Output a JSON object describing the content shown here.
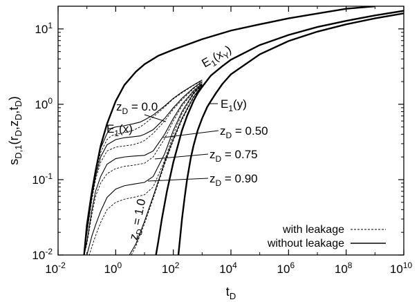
{
  "chart_data": {
    "type": "line",
    "title": "",
    "xlabel": "t_D",
    "ylabel": "s_{D,1}(r_D,z_D,t_D)",
    "xscale": "log",
    "yscale": "log",
    "xlim": [
      0.01,
      10000000000
    ],
    "ylim": [
      0.01,
      20
    ],
    "x_ticks": [
      0.01,
      1,
      100,
      10000,
      1000000,
      100000000,
      10000000000
    ],
    "x_tick_labels": [
      {
        "base": "10",
        "exp": "-2"
      },
      {
        "base": "10",
        "exp": "0"
      },
      {
        "base": "10",
        "exp": "2"
      },
      {
        "base": "10",
        "exp": "4"
      },
      {
        "base": "10",
        "exp": "6"
      },
      {
        "base": "10",
        "exp": "8"
      },
      {
        "base": "10",
        "exp": "10"
      }
    ],
    "y_ticks": [
      0.01,
      0.1,
      1,
      10
    ],
    "y_tick_labels": [
      {
        "base": "10",
        "exp": "-2"
      },
      {
        "base": "10",
        "exp": "-1"
      },
      {
        "base": "10",
        "exp": "0"
      },
      {
        "base": "10",
        "exp": "1"
      }
    ],
    "grid": false,
    "legend_position": "bottom-right",
    "legend": [
      {
        "label": "with leakage",
        "style": "dashed"
      },
      {
        "label": "without leakage",
        "style": "solid"
      }
    ],
    "annotations": [
      {
        "main": "E",
        "sub": "1",
        "tail": "(x)"
      },
      {
        "main": "E",
        "sub": "1",
        "tail": "(x",
        "sub2": "Y",
        "tail2": ")"
      },
      {
        "main": "E",
        "sub": "1",
        "tail": "(y)"
      },
      {
        "main": "z",
        "sub": "D",
        "tail": " = 0.0"
      },
      {
        "main": "z",
        "sub": "D",
        "tail": " = 0.50"
      },
      {
        "main": "z",
        "sub": "D",
        "tail": " = 0.75"
      },
      {
        "main": "z",
        "sub": "D",
        "tail": " = 0.90"
      },
      {
        "main": "z",
        "sub": "D",
        "tail": " = 1.0"
      }
    ],
    "series": [
      {
        "style": "thick",
        "x": [
          0.08,
          0.1,
          0.15,
          0.2,
          0.3,
          0.5,
          1,
          2,
          5,
          10,
          30,
          100,
          1000,
          10000,
          100000,
          1000000,
          10000000,
          100000000,
          1000000000
        ],
        "y": [
          0.01,
          0.025,
          0.07,
          0.13,
          0.28,
          0.55,
          1.1,
          1.8,
          2.7,
          3.4,
          4.4,
          5.3,
          7.3,
          9.5,
          11.5,
          13.8,
          16.0,
          18.5,
          20.0
        ]
      },
      {
        "style": "thick",
        "x": [
          25,
          30,
          40,
          60,
          100,
          150,
          200,
          300,
          500,
          700,
          1000,
          2000,
          5000,
          10000,
          100000,
          1000000,
          10000000,
          100000000,
          1000000000,
          10000000000
        ],
        "y": [
          0.01,
          0.015,
          0.03,
          0.07,
          0.17,
          0.3,
          0.45,
          0.7,
          1.1,
          1.4,
          1.7,
          2.4,
          3.2,
          3.9,
          6.1,
          8.3,
          10.6,
          12.8,
          15.1,
          17.4
        ]
      },
      {
        "style": "thick",
        "x": [
          150,
          200,
          250,
          300,
          400,
          500,
          700,
          1000,
          1500,
          2000,
          3000,
          5000,
          10000,
          100000,
          1000000,
          10000000,
          100000000,
          1000000000,
          10000000000
        ],
        "y": [
          0.01,
          0.03,
          0.06,
          0.1,
          0.19,
          0.28,
          0.45,
          0.65,
          0.92,
          1.1,
          1.4,
          1.85,
          2.5,
          4.6,
          6.9,
          9.2,
          11.5,
          13.8,
          16.1
        ]
      },
      {
        "style": "solid",
        "x": [
          0.08,
          0.1,
          0.15,
          0.2,
          0.3,
          0.5,
          0.7,
          1,
          2,
          4,
          7,
          10,
          20,
          50,
          100,
          200,
          500,
          1000
        ],
        "y": [
          0.01,
          0.025,
          0.07,
          0.13,
          0.26,
          0.41,
          0.48,
          0.5,
          0.52,
          0.55,
          0.58,
          0.62,
          0.72,
          0.95,
          1.2,
          1.45,
          1.8,
          2.1
        ]
      },
      {
        "style": "solid",
        "x": [
          0.08,
          0.1,
          0.15,
          0.2,
          0.3,
          0.5,
          1,
          2,
          4,
          7,
          10,
          20,
          50,
          100,
          200,
          500,
          1000
        ],
        "y": [
          0.01,
          0.02,
          0.06,
          0.11,
          0.2,
          0.29,
          0.34,
          0.36,
          0.37,
          0.38,
          0.4,
          0.46,
          0.65,
          0.9,
          1.2,
          1.65,
          2.0
        ]
      },
      {
        "style": "solid",
        "x": [
          0.08,
          0.1,
          0.15,
          0.2,
          0.3,
          0.5,
          1,
          2,
          4,
          10,
          20,
          50,
          100,
          200,
          500,
          1000
        ],
        "y": [
          0.01,
          0.015,
          0.04,
          0.07,
          0.11,
          0.16,
          0.19,
          0.2,
          0.205,
          0.21,
          0.24,
          0.4,
          0.65,
          1.0,
          1.5,
          1.9
        ]
      },
      {
        "style": "solid",
        "x": [
          0.1,
          0.15,
          0.2,
          0.3,
          0.5,
          1,
          2,
          4,
          10,
          20,
          50,
          100,
          200,
          500,
          1000
        ],
        "y": [
          0.01,
          0.018,
          0.025,
          0.038,
          0.058,
          0.075,
          0.083,
          0.087,
          0.092,
          0.11,
          0.22,
          0.45,
          0.8,
          1.4,
          1.85
        ]
      },
      {
        "style": "solid",
        "x": [
          3,
          5,
          10,
          20,
          50,
          100,
          200,
          500,
          1000
        ],
        "y": [
          0.01,
          0.014,
          0.028,
          0.06,
          0.17,
          0.35,
          0.65,
          1.25,
          1.8
        ]
      },
      {
        "style": "dashed",
        "x": [
          0.08,
          0.1,
          0.15,
          0.2,
          0.3,
          0.5,
          0.7,
          1,
          2,
          4,
          7,
          10,
          20,
          50,
          100,
          200,
          500,
          1000
        ],
        "y": [
          0.01,
          0.024,
          0.065,
          0.12,
          0.23,
          0.34,
          0.38,
          0.4,
          0.42,
          0.45,
          0.5,
          0.55,
          0.68,
          0.92,
          1.18,
          1.42,
          1.78,
          2.05
        ]
      },
      {
        "style": "dashed",
        "x": [
          0.08,
          0.1,
          0.15,
          0.2,
          0.3,
          0.5,
          1,
          2,
          4,
          7,
          10,
          20,
          50,
          100,
          200,
          500,
          1000
        ],
        "y": [
          0.01,
          0.019,
          0.055,
          0.1,
          0.17,
          0.24,
          0.27,
          0.28,
          0.29,
          0.31,
          0.33,
          0.41,
          0.6,
          0.86,
          1.15,
          1.6,
          1.95
        ]
      },
      {
        "style": "dashed",
        "x": [
          0.08,
          0.1,
          0.15,
          0.2,
          0.3,
          0.5,
          1,
          2,
          4,
          10,
          20,
          50,
          100,
          200,
          500,
          1000
        ],
        "y": [
          0.01,
          0.014,
          0.035,
          0.06,
          0.09,
          0.12,
          0.14,
          0.15,
          0.155,
          0.165,
          0.2,
          0.35,
          0.6,
          0.95,
          1.45,
          1.85
        ]
      },
      {
        "style": "dashed",
        "x": [
          0.1,
          0.15,
          0.2,
          0.3,
          0.5,
          1,
          2,
          4,
          10,
          20,
          50,
          100,
          200,
          500,
          1000
        ],
        "y": [
          0.008,
          0.013,
          0.018,
          0.027,
          0.04,
          0.05,
          0.055,
          0.058,
          0.063,
          0.08,
          0.18,
          0.4,
          0.75,
          1.35,
          1.82
        ]
      },
      {
        "style": "dashed",
        "x": [
          3.5,
          5,
          10,
          20,
          50,
          100,
          200,
          500,
          1000
        ],
        "y": [
          0.01,
          0.013,
          0.026,
          0.056,
          0.16,
          0.33,
          0.62,
          1.22,
          1.78
        ]
      }
    ]
  }
}
